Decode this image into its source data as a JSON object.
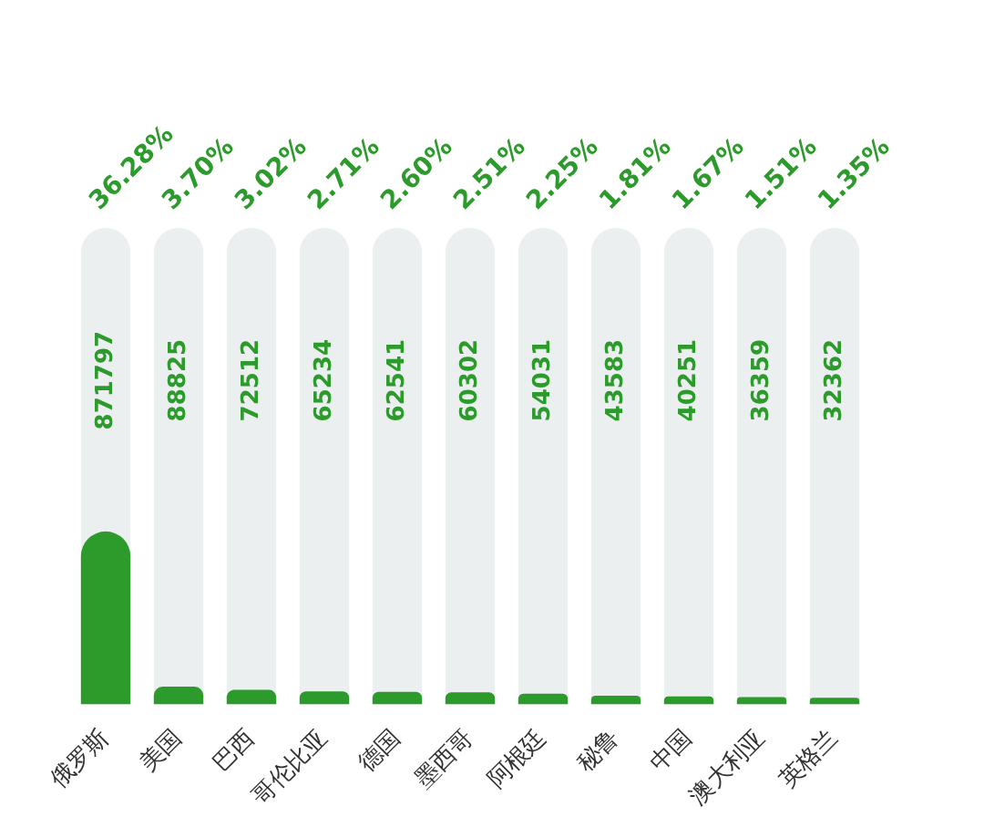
{
  "chart_data": {
    "type": "bar",
    "categories": [
      "俄罗斯",
      "美国",
      "巴西",
      "哥伦比亚",
      "德国",
      "墨西哥",
      "阿根廷",
      "秘鲁",
      "中国",
      "澳大利亚",
      "英格兰"
    ],
    "values": [
      36.28,
      3.7,
      3.02,
      2.71,
      2.6,
      2.51,
      2.25,
      1.81,
      1.67,
      1.51,
      1.35
    ],
    "value_labels": [
      "36.28%",
      "3.70%",
      "3.02%",
      "2.71%",
      "2.60%",
      "2.51%",
      "2.25%",
      "1.81%",
      "1.67%",
      "1.51%",
      "1.35%"
    ],
    "color": "#2c9b2c",
    "ylim": [
      0,
      100
    ],
    "grid": false,
    "legend": false,
    "tick_labels": "x",
    "annotations": [
      "871797",
      "88825",
      "72512",
      "65234",
      "62541",
      "60302",
      "54031",
      "43583",
      "40251",
      "36359",
      "32362"
    ]
  }
}
